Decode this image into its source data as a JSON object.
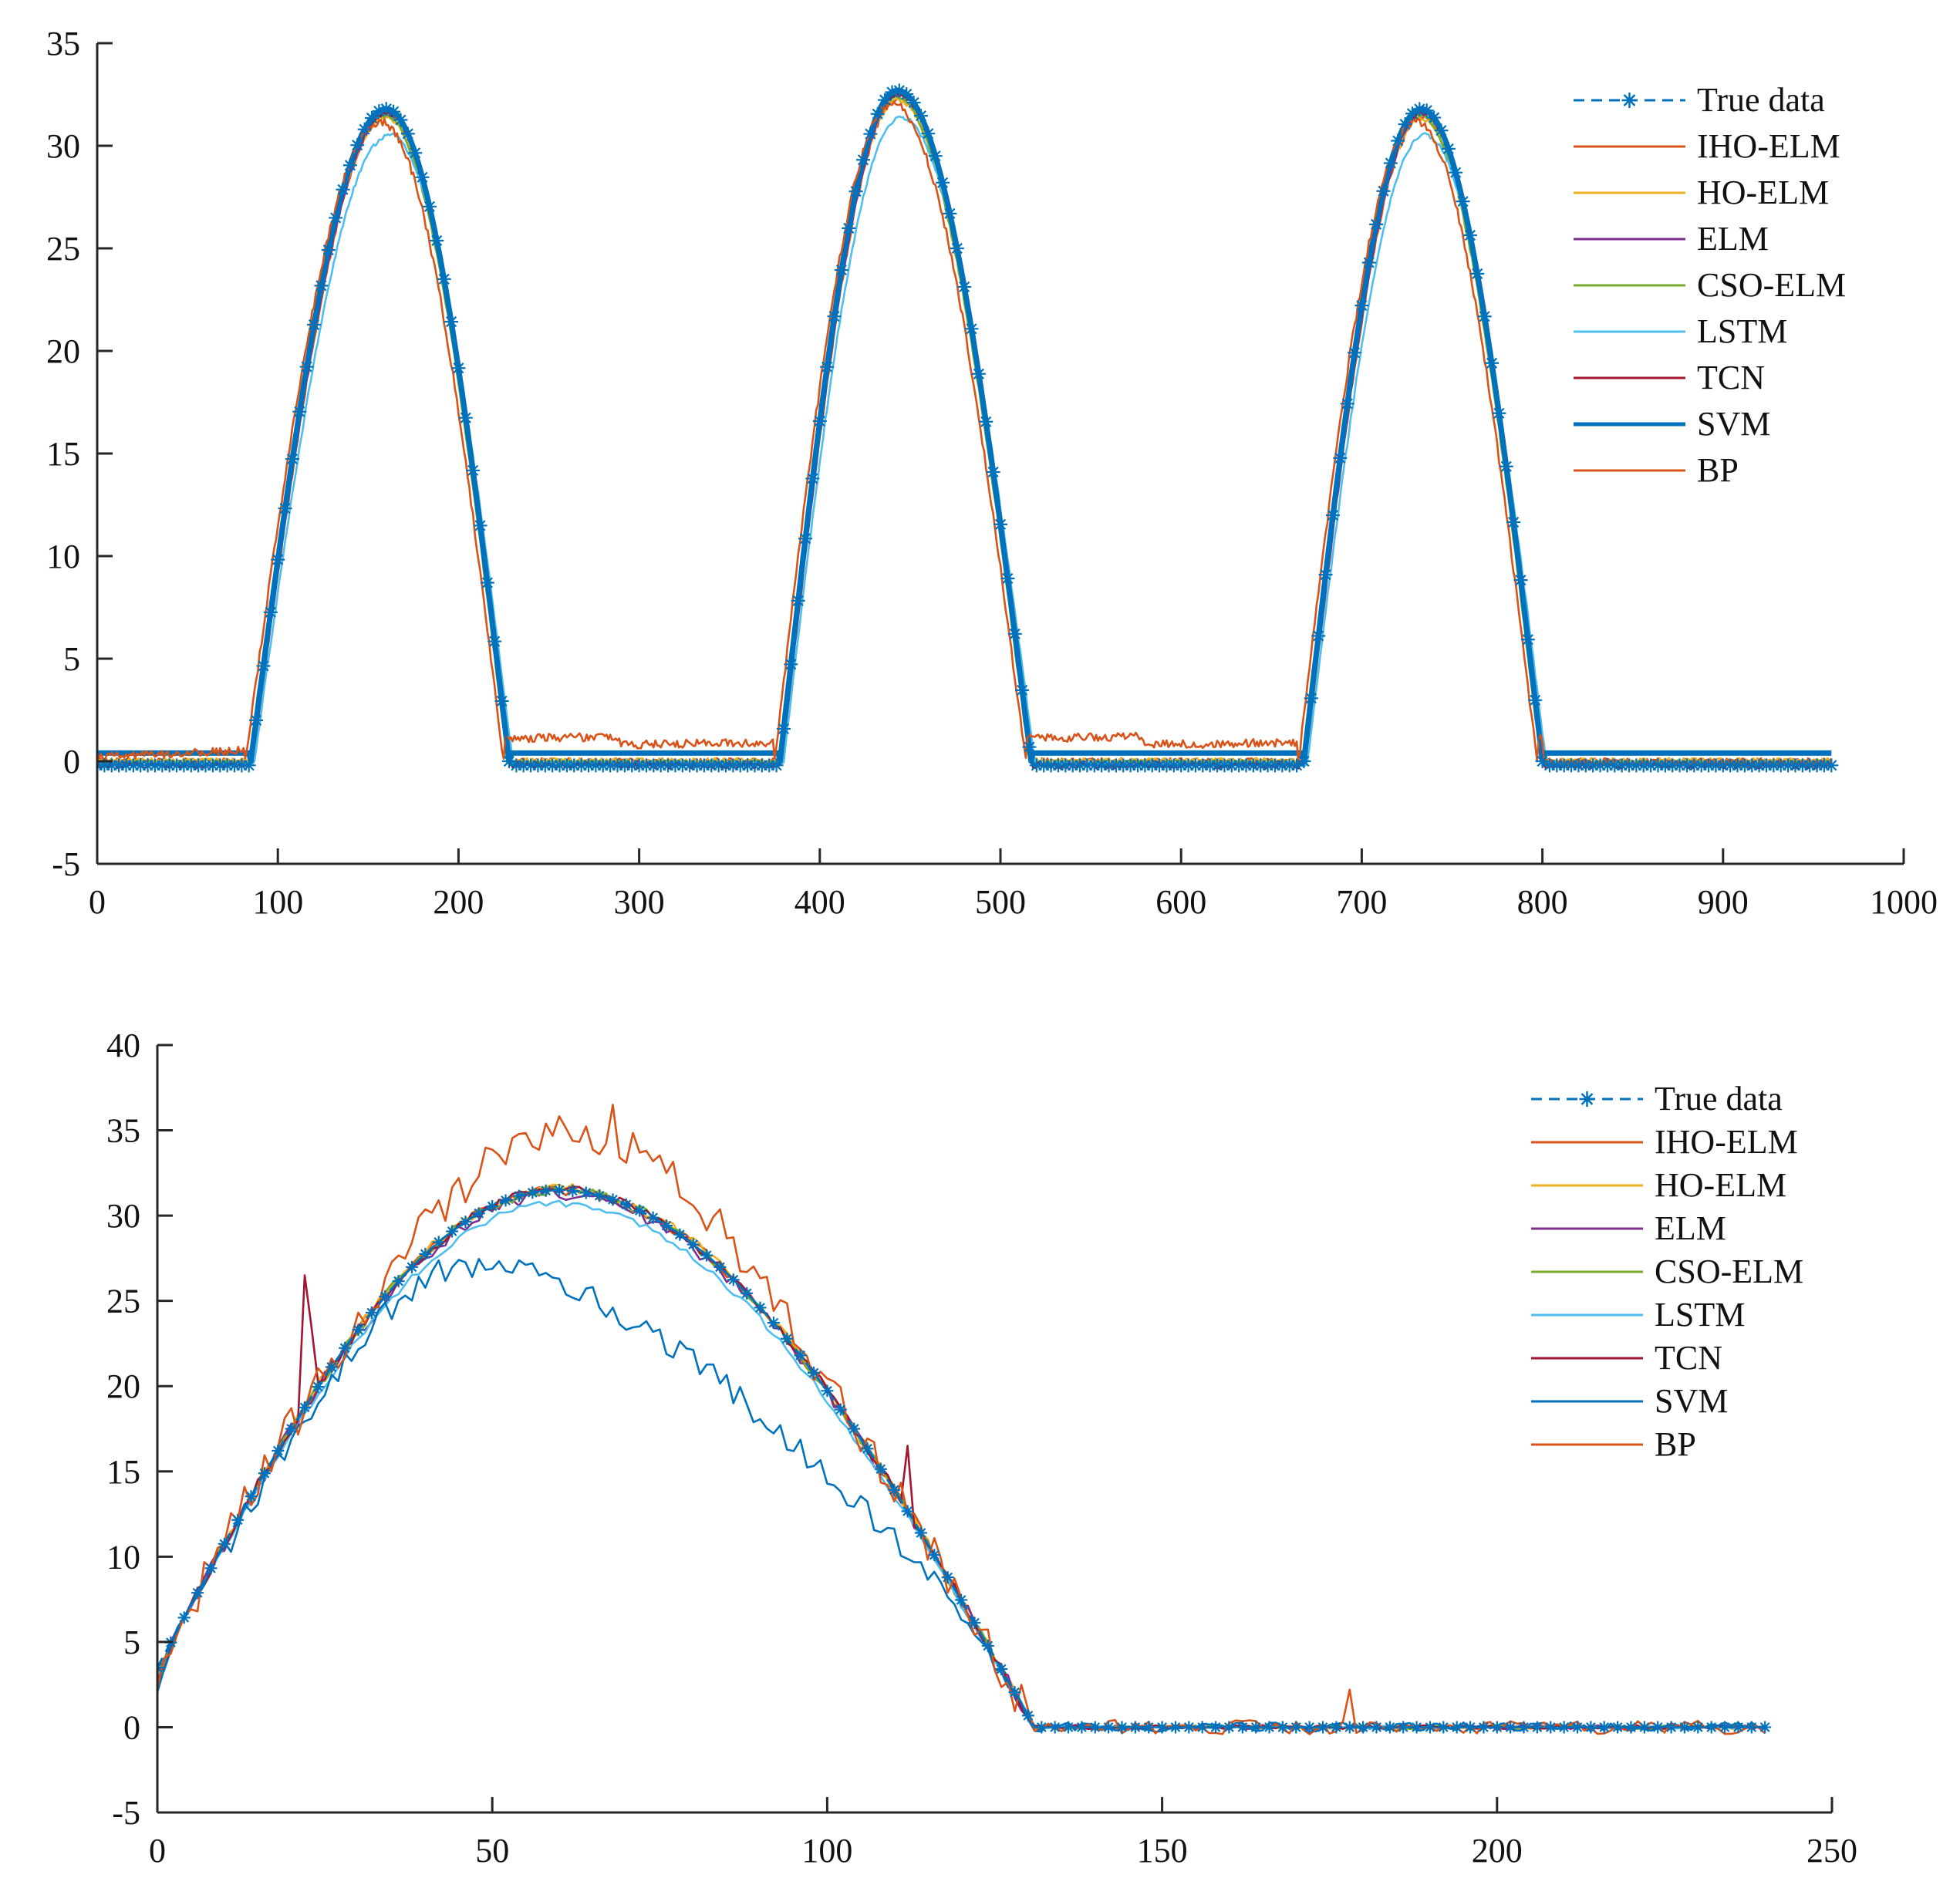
{
  "colors": {
    "axis": "#262626",
    "True data": "#0072BD",
    "IHO-ELM": "#D95319",
    "HO-ELM": "#EDB120",
    "ELM": "#7E2F8E",
    "CSO-ELM": "#77AC30",
    "LSTM": "#4DBEEE",
    "TCN": "#A2142F",
    "SVM": "#0072BD",
    "BP": "#D95319"
  },
  "chart_data": [
    {
      "type": "line",
      "title": "",
      "xlabel": "",
      "ylabel": "",
      "xlim": [
        0,
        1000
      ],
      "ylim": [
        -5,
        35
      ],
      "xticks": [
        0,
        100,
        200,
        300,
        400,
        500,
        600,
        700,
        800,
        900,
        1000
      ],
      "yticks": [
        -5,
        0,
        5,
        10,
        15,
        20,
        25,
        30,
        35
      ],
      "xtick_labels": [
        "0",
        "100",
        "200",
        "300",
        "400",
        "500",
        "600",
        "700",
        "800",
        "900",
        "1000"
      ],
      "ytick_labels": [
        "-5",
        "0",
        "5",
        "10",
        "15",
        "20",
        "25",
        "30",
        "35"
      ],
      "legend_position": "top-right",
      "legend": [
        "True data",
        "IHO-ELM",
        "HO-ELM",
        "ELM",
        "CSO-ELM",
        "LSTM",
        "TCN",
        "SVM",
        "BP"
      ],
      "x_range": [
        0,
        960
      ],
      "peaks": [
        {
          "start": 85,
          "peak_x": 160,
          "end": 228,
          "peak_y": 31.8
        },
        {
          "start": 378,
          "peak_x": 443,
          "end": 517,
          "peak_y": 32.7
        },
        {
          "start": 668,
          "peak_x": 733,
          "end": 800,
          "peak_y": 31.8
        }
      ],
      "true_data_baseline": -0.2,
      "series": [
        {
          "name": "True data",
          "style": "dashed-star",
          "baseline_offset": 0.0,
          "amp_scale": 1.0,
          "shift": 0,
          "noise": 0.0
        },
        {
          "name": "IHO-ELM",
          "style": "line",
          "baseline_offset": 0.2,
          "amp_scale": 0.99,
          "shift": 1,
          "noise": 0.15
        },
        {
          "name": "HO-ELM",
          "style": "line",
          "baseline_offset": 0.25,
          "amp_scale": 0.985,
          "shift": 0,
          "noise": 0.1
        },
        {
          "name": "ELM",
          "style": "line",
          "baseline_offset": 0.1,
          "amp_scale": 0.995,
          "shift": 1,
          "noise": 0.1
        },
        {
          "name": "CSO-ELM",
          "style": "line",
          "baseline_offset": 0.15,
          "amp_scale": 0.99,
          "shift": -1,
          "noise": 0.1
        },
        {
          "name": "LSTM",
          "style": "line",
          "baseline_offset": 0.05,
          "amp_scale": 0.96,
          "shift": 2,
          "noise": 0.1
        },
        {
          "name": "TCN",
          "style": "line",
          "baseline_offset": 0.0,
          "amp_scale": 0.995,
          "shift": 0,
          "noise": 0.15
        },
        {
          "name": "SVM",
          "style": "thick",
          "baseline_offset": 0.6,
          "amp_scale": 1.0,
          "shift": 0,
          "noise": 0.0
        },
        {
          "name": "BP",
          "style": "line",
          "baseline_offset": 1.0,
          "amp_scale": 0.98,
          "shift": -3,
          "noise": 0.2
        }
      ]
    },
    {
      "type": "line",
      "title": "",
      "xlabel": "",
      "ylabel": "",
      "xlim": [
        0,
        250
      ],
      "ylim": [
        -5,
        40
      ],
      "xticks": [
        0,
        50,
        100,
        150,
        200,
        250
      ],
      "yticks": [
        -5,
        0,
        5,
        10,
        15,
        20,
        25,
        30,
        35,
        40
      ],
      "xtick_labels": [
        "0",
        "50",
        "100",
        "150",
        "200",
        "250"
      ],
      "ytick_labels": [
        "-5",
        "0",
        "5",
        "10",
        "15",
        "20",
        "25",
        "30",
        "35",
        "40"
      ],
      "legend_position": "top-right",
      "legend": [
        "True data",
        "IHO-ELM",
        "HO-ELM",
        "ELM",
        "CSO-ELM",
        "LSTM",
        "TCN",
        "SVM",
        "BP"
      ],
      "x_range": [
        0,
        240
      ],
      "true_curve": {
        "start_y": 3.5,
        "peak_x": 60,
        "peak_y": 31.5,
        "zero_x": 131,
        "baseline": 0.0
      },
      "series": [
        {
          "name": "True data",
          "style": "dashed-star"
        },
        {
          "name": "IHO-ELM",
          "style": "line",
          "noise": 0.3,
          "bias": 0.0
        },
        {
          "name": "HO-ELM",
          "style": "line",
          "noise": 0.3,
          "bias": 0.1
        },
        {
          "name": "ELM",
          "style": "line",
          "noise": 0.4,
          "bias": -0.2
        },
        {
          "name": "CSO-ELM",
          "style": "line",
          "noise": 0.3,
          "bias": 0.0
        },
        {
          "name": "LSTM",
          "style": "line",
          "noise": 0.2,
          "bias": -0.8
        },
        {
          "name": "TCN",
          "style": "line",
          "noise": 0.3,
          "bias": 0.0,
          "spikes": [
            {
              "x": 22,
              "y": 26.5
            },
            {
              "x": 23,
              "y": 23.5
            },
            {
              "x": 112,
              "y": 16.5
            }
          ]
        },
        {
          "name": "SVM",
          "style": "line",
          "noise": 0.8,
          "bias": -1.5,
          "sag": 5.5
        },
        {
          "name": "BP",
          "style": "line",
          "noise": 1.2,
          "bias": 0.3,
          "hump": 3.0,
          "spikes": [
            {
              "x": 68,
              "y": 36.5
            },
            {
              "x": 178,
              "y": 2.2
            }
          ]
        }
      ]
    }
  ]
}
